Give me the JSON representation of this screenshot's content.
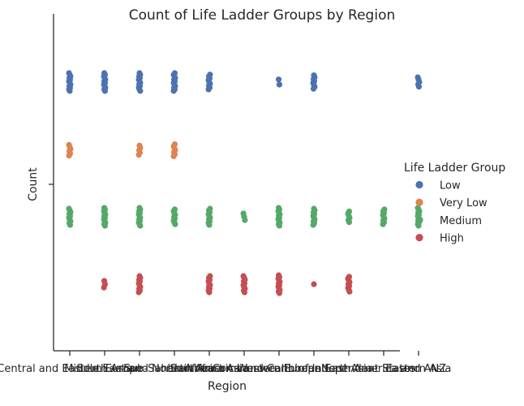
{
  "chart_data": {
    "type": "scatter",
    "title": "Count of Life Ladder Groups by Region",
    "xlabel": "Region",
    "ylabel": "Count",
    "categories": [
      "Central and Eastern Europe",
      "South Asia",
      "Middle East and North Africa",
      "Sub-Saharan Africa",
      "Southeast Asia",
      "Latin America and Caribbean",
      "Western Europe",
      "Commonwealth of Independent States",
      "East Asia",
      "North America and ANZ",
      "Eastern Asia"
    ],
    "y_categories": [
      "Low",
      "Very Low",
      "Medium",
      "High"
    ],
    "legend": {
      "title": "Life Ladder Group",
      "placement": "right",
      "entries": [
        "Low",
        "Very Low",
        "Medium",
        "High"
      ]
    },
    "colors": {
      "Low": "#4c72b0",
      "Very Low": "#dd8452",
      "Medium": "#55a868",
      "High": "#c44e52"
    },
    "series": [
      {
        "name": "Low",
        "counts": [
          12,
          12,
          12,
          12,
          9,
          0,
          2,
          8,
          0,
          0,
          5
        ]
      },
      {
        "name": "Very Low",
        "counts": [
          6,
          0,
          5,
          7,
          0,
          0,
          0,
          0,
          0,
          0,
          0
        ]
      },
      {
        "name": "Medium",
        "counts": [
          10,
          12,
          12,
          9,
          10,
          3,
          12,
          10,
          6,
          9,
          12
        ]
      },
      {
        "name": "High",
        "counts": [
          0,
          3,
          10,
          0,
          10,
          10,
          12,
          1,
          9,
          0,
          0
        ]
      }
    ],
    "grid": false
  }
}
